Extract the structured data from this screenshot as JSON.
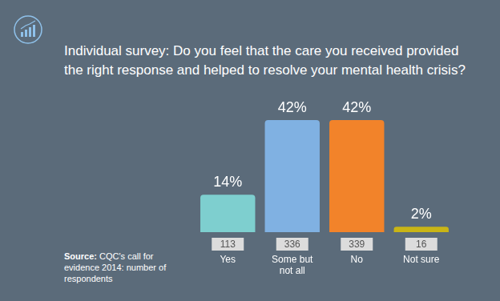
{
  "chart_data": {
    "type": "bar",
    "title": "Individual survey: Do you feel that the care you received provided the right response and helped to resolve your mental health crisis?",
    "categories": [
      "Yes",
      "Some but not all",
      "No",
      "Not sure"
    ],
    "values": [
      14,
      42,
      42,
      2
    ],
    "value_labels": [
      "14%",
      "42%",
      "42%",
      "2%"
    ],
    "colors": [
      "#7ecfcf",
      "#80b1e2",
      "#f2832a",
      "#c9b516"
    ],
    "counts": [
      113,
      336,
      339,
      16
    ],
    "source": "Source: CQC's call for evidence 2014: number of respondents",
    "ylim": [
      0,
      42
    ],
    "grid": false,
    "data_labels": true,
    "tick_labels": false
  }
}
